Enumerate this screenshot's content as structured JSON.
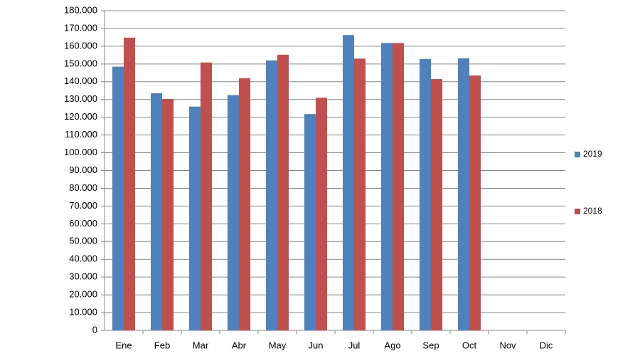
{
  "chart_data": {
    "type": "bar",
    "categories": [
      "Ene",
      "Feb",
      "Mar",
      "Abr",
      "May",
      "Jun",
      "Jul",
      "Ago",
      "Sep",
      "Oct",
      "Nov",
      "Dic"
    ],
    "series": [
      {
        "name": "2019",
        "color": "#4f81bd",
        "values": [
          148500,
          133500,
          126000,
          132500,
          152000,
          121800,
          166300,
          161800,
          152800,
          153200,
          null,
          null
        ]
      },
      {
        "name": "2018",
        "color": "#c0504d",
        "values": [
          164800,
          130300,
          150800,
          142000,
          155200,
          131000,
          153000,
          161800,
          141500,
          143500,
          null,
          null
        ]
      }
    ],
    "ylim": [
      0,
      180000
    ],
    "yticks": [
      0,
      {
        "value": 10000,
        "label": "10.000"
      },
      {
        "value": 20000,
        "label": "20.000"
      },
      {
        "value": 30000,
        "label": "30.000"
      },
      {
        "value": 40000,
        "label": "40.000"
      },
      {
        "value": 50000,
        "label": "50.000"
      },
      {
        "value": 60000,
        "label": "60.000"
      },
      {
        "value": 70000,
        "label": "70.000"
      },
      {
        "value": 80000,
        "label": "80.000"
      },
      {
        "value": 90000,
        "label": "90.000"
      },
      {
        "value": 100000,
        "label": "100.000"
      },
      {
        "value": 110000,
        "label": "110.000"
      },
      {
        "value": 120000,
        "label": "120.000"
      },
      {
        "value": 130000,
        "label": "130.000"
      },
      {
        "value": 140000,
        "label": "140.000"
      },
      {
        "value": 150000,
        "label": "150.000"
      },
      {
        "value": 160000,
        "label": "160.000"
      },
      {
        "value": 170000,
        "label": "170.000"
      },
      {
        "value": 180000,
        "label": "180.000"
      }
    ],
    "grid": true,
    "legend": "right"
  }
}
